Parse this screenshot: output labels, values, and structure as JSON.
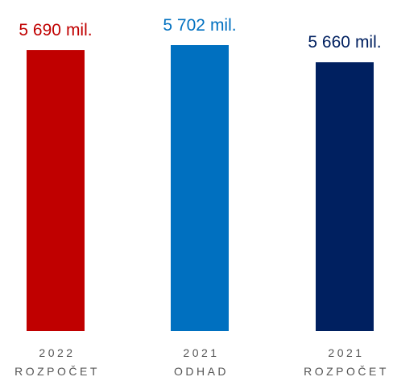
{
  "chart_data": {
    "type": "bar",
    "categories": [
      {
        "year": "2022",
        "kind": "ROZPOČET"
      },
      {
        "year": "2021",
        "kind": "ODHAD"
      },
      {
        "year": "2021",
        "kind": "ROZPOČET"
      }
    ],
    "values": [
      5690,
      5702,
      5660
    ],
    "value_labels": [
      "5 690",
      "5 702",
      "5 660"
    ],
    "value_unit": "mil.",
    "colors": [
      "#c00000",
      "#0070c0",
      "#002060"
    ],
    "title": "",
    "xlabel": "",
    "ylabel": "",
    "grid": false,
    "legend": "none"
  }
}
